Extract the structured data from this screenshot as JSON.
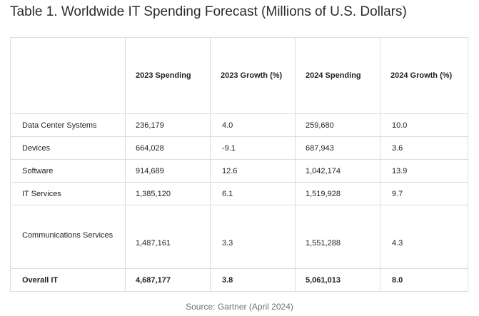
{
  "title": "Table 1. Worldwide IT Spending Forecast (Millions of U.S. Dollars)",
  "columns": [
    "",
    "2023 Spending",
    "2023 Growth (%)",
    "2024 Spending",
    "2024 Growth (%)"
  ],
  "rows": [
    {
      "category": "Data Center Systems",
      "spend_2023": "236,179",
      "growth_2023": "4.0",
      "spend_2024": "259,680",
      "growth_2024": "10.0"
    },
    {
      "category": "Devices",
      "spend_2023": "664,028",
      "growth_2023": "-9.1",
      "spend_2024": "687,943",
      "growth_2024": "3.6"
    },
    {
      "category": "Software",
      "spend_2023": "914,689",
      "growth_2023": "12.6",
      "spend_2024": "1,042,174",
      "growth_2024": "13.9"
    },
    {
      "category": "IT Services",
      "spend_2023": "1,385,120",
      "growth_2023": "6.1",
      "spend_2024": "1,519,928",
      "growth_2024": "9.7"
    },
    {
      "category": "Communications Services",
      "spend_2023": "1,487,161",
      "growth_2023": "3.3",
      "spend_2024": "1,551,288",
      "growth_2024": "4.3"
    }
  ],
  "total": {
    "category": "Overall IT",
    "spend_2023": "4,687,177",
    "growth_2023": "3.8",
    "spend_2024": "5,061,013",
    "growth_2024": "8.0"
  },
  "source": "Source: Gartner (April 2024)"
}
